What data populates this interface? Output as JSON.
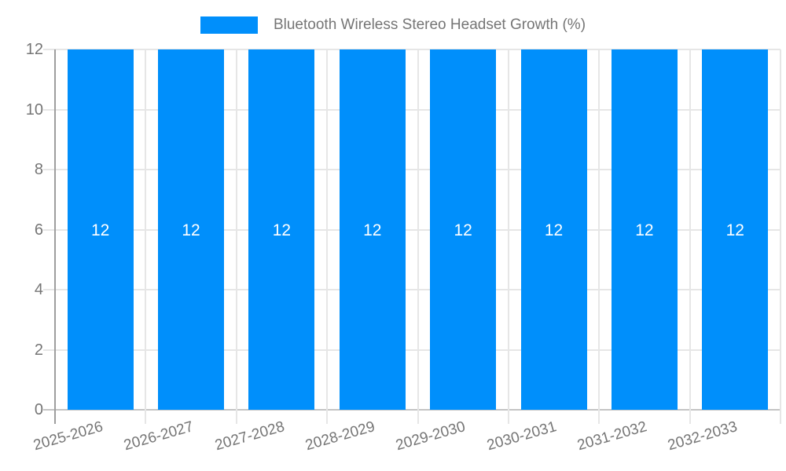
{
  "legend": {
    "label": "Bluetooth Wireless Stereo Headset Growth (%)"
  },
  "chart_data": {
    "type": "bar",
    "title": "Bluetooth Wireless Stereo Headset Growth (%)",
    "categories": [
      "2025-2026",
      "2026-2027",
      "2027-2028",
      "2028-2029",
      "2029-2030",
      "2030-2031",
      "2031-2032",
      "2032-2033"
    ],
    "values": [
      12,
      12,
      12,
      12,
      12,
      12,
      12,
      12
    ],
    "bar_labels": [
      "12",
      "12",
      "12",
      "12",
      "12",
      "12",
      "12",
      "12"
    ],
    "xlabel": "",
    "ylabel": "",
    "ylim": [
      0,
      12
    ],
    "yticks": [
      0,
      2,
      4,
      6,
      8,
      10,
      12
    ],
    "grid": true,
    "legend_position": "top",
    "colors": {
      "bar": "#008FFB",
      "grid": "#e6e6e6",
      "y_axis_line": "#9e9e9e",
      "baseline": "#c4c4c4",
      "tick_text": "#757575",
      "bar_label_text": "#ffffff"
    }
  }
}
